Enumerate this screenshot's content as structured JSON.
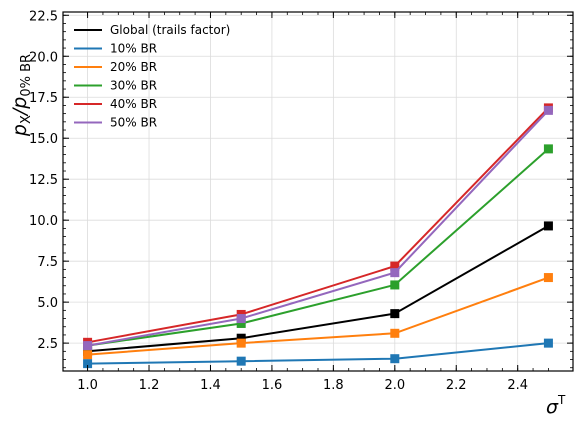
{
  "chart_data": {
    "type": "line",
    "x": [
      1.0,
      1.5,
      2.0,
      2.5
    ],
    "xlim": [
      0.92,
      2.58
    ],
    "ylim": [
      0.8,
      22.7
    ],
    "xticks": [
      "1.0",
      "1.2",
      "1.4",
      "1.6",
      "1.8",
      "2.0",
      "2.2",
      "2.4"
    ],
    "yticks": [
      "2.5",
      "5.0",
      "7.5",
      "10.0",
      "12.5",
      "15.0",
      "17.5",
      "20.0",
      "22.5"
    ],
    "xlabel": "σ",
    "xlabel_sup": "T",
    "ylabel": "p",
    "ylabel_sub1": "X",
    "ylabel_mid": "/p",
    "ylabel_sub2": "0% BR",
    "grid": true,
    "legend_position": "top-left",
    "series": [
      {
        "name": "Global (trails factor)",
        "color": "#000000",
        "values": [
          2.0,
          2.8,
          4.3,
          9.65
        ]
      },
      {
        "name": "10% BR",
        "color": "#1f77b4",
        "values": [
          1.25,
          1.4,
          1.55,
          2.5
        ]
      },
      {
        "name": "20% BR",
        "color": "#ff7f0e",
        "values": [
          1.8,
          2.5,
          3.1,
          6.5
        ]
      },
      {
        "name": "30% BR",
        "color": "#2ca02c",
        "values": [
          2.35,
          3.7,
          6.05,
          14.35
        ]
      },
      {
        "name": "40% BR",
        "color": "#d62728",
        "values": [
          2.55,
          4.25,
          7.2,
          16.85
        ]
      },
      {
        "name": "50% BR",
        "color": "#9467bd",
        "values": [
          2.35,
          4.0,
          6.8,
          16.7
        ]
      }
    ]
  }
}
